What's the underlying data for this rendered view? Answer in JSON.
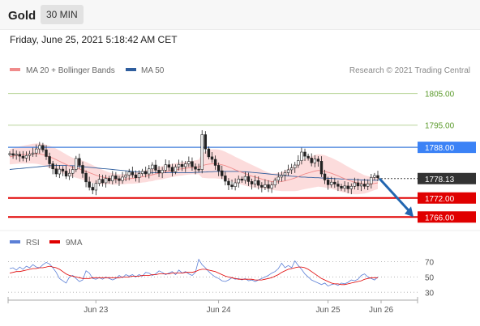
{
  "header": {
    "symbol": "Gold",
    "interval": "30 MIN",
    "timestamp": "Friday, June 25, 2021 5:18:42 AM CET"
  },
  "legend": {
    "ma20_label": "MA 20 + Bollinger Bands",
    "ma50_label": "MA 50",
    "credit": "Research © 2021 Trading Central"
  },
  "rsi_legend": {
    "rsi_label": "RSI",
    "ma_label": "9MA"
  },
  "colors": {
    "ma20": "#f08b8b",
    "bollinger_fill": "#fbd6d6",
    "ma50": "#2f5e9e",
    "resistance_label_bg": "#3b82f6",
    "support": "#e00000",
    "target_green": "#5a9a2a",
    "current_bg": "#333333",
    "arrow": "#2266b0",
    "candle": "#222222"
  },
  "chart_data": {
    "type": "candlestick",
    "ylim": [
      1763,
      1810
    ],
    "x_ticks": [
      "Jun 23",
      "Jun 24",
      "Jun 25",
      "Jun 26"
    ],
    "close_series": [
      1786.0,
      1785.5,
      1785.8,
      1785.2,
      1784.6,
      1785.4,
      1785.9,
      1786.2,
      1787.5,
      1788.6,
      1787.2,
      1785.1,
      1782.8,
      1781.2,
      1779.6,
      1781.1,
      1780.5,
      1778.9,
      1779.8,
      1781.0,
      1784.5,
      1782.3,
      1779.8,
      1777.1,
      1775.4,
      1774.5,
      1776.6,
      1777.9,
      1776.8,
      1778.2,
      1777.4,
      1779.0,
      1778.1,
      1777.5,
      1778.6,
      1779.2,
      1780.2,
      1779.3,
      1778.4,
      1779.7,
      1780.4,
      1779.6,
      1781.2,
      1782.4,
      1780.8,
      1779.9,
      1780.8,
      1782.5,
      1781.7,
      1780.3,
      1781.8,
      1782.6,
      1781.9,
      1782.8,
      1783.5,
      1781.9,
      1781.1,
      1781.0,
      1792.0,
      1787.5,
      1785.0,
      1784.2,
      1782.3,
      1780.6,
      1779.0,
      1777.3,
      1776.1,
      1775.6,
      1776.8,
      1778.0,
      1777.6,
      1778.8,
      1777.2,
      1776.4,
      1777.5,
      1776.0,
      1775.4,
      1776.2,
      1775.1,
      1776.1,
      1777.6,
      1778.6,
      1779.2,
      1780.0,
      1780.9,
      1781.5,
      1782.4,
      1783.8,
      1786.5,
      1785.2,
      1784.6,
      1783.1,
      1784.3,
      1783.6,
      1779.6,
      1777.7,
      1776.2,
      1777.0,
      1776.4,
      1775.7,
      1775.1,
      1775.8,
      1774.9,
      1775.7,
      1776.8,
      1775.8,
      1776.4,
      1775.7,
      1776.5,
      1778.5,
      1779.1,
      1778.4
    ],
    "ma20_series": [
      1785.0,
      1785.2,
      1785.4,
      1785.6,
      1785.7,
      1785.8,
      1785.9,
      1786.0,
      1786.0,
      1785.9,
      1785.7,
      1785.4,
      1785.0,
      1784.6,
      1784.1,
      1783.6,
      1783.1,
      1782.6,
      1782.1,
      1781.7,
      1781.4,
      1781.1,
      1780.8,
      1780.4,
      1780.0,
      1779.6,
      1779.2,
      1778.9,
      1778.6,
      1778.4,
      1778.2,
      1778.0,
      1777.9,
      1777.9,
      1777.9,
      1778.0,
      1778.1,
      1778.2,
      1778.3,
      1778.5,
      1778.7,
      1778.9,
      1779.1,
      1779.3,
      1779.6,
      1779.8,
      1780.0,
      1780.3,
      1780.5,
      1780.7,
      1780.9,
      1781.1,
      1781.2,
      1781.4,
      1781.5,
      1781.6,
      1781.7,
      1781.8,
      1782.2,
      1782.5,
      1782.7,
      1782.8,
      1782.8,
      1782.7,
      1782.5,
      1782.2,
      1781.8,
      1781.4,
      1780.9,
      1780.5,
      1780.1,
      1779.7,
      1779.3,
      1778.9,
      1778.6,
      1778.3,
      1778.0,
      1777.7,
      1777.4,
      1777.2,
      1777.1,
      1777.1,
      1777.2,
      1777.4,
      1777.7,
      1778.0,
      1778.3,
      1778.7,
      1779.2,
      1779.6,
      1779.9,
      1780.2,
      1780.5,
      1780.7,
      1780.6,
      1780.4,
      1780.1,
      1779.8,
      1779.4,
      1779.0,
      1778.5,
      1778.1,
      1777.7,
      1777.3,
      1777.0,
      1776.7,
      1776.5,
      1776.3,
      1776.3,
      1776.4,
      1776.6,
      1776.8
    ],
    "band_width_series": [
      2.4,
      2.5,
      2.6,
      2.7,
      2.8,
      2.9,
      3.0,
      3.1,
      3.2,
      3.3,
      3.4,
      3.4,
      3.5,
      3.5,
      3.5,
      3.4,
      3.3,
      3.2,
      3.1,
      3.0,
      3.0,
      3.0,
      3.0,
      3.0,
      2.9,
      2.8,
      2.7,
      2.5,
      2.3,
      2.1,
      1.9,
      1.8,
      1.7,
      1.6,
      1.6,
      1.6,
      1.6,
      1.7,
      1.7,
      1.8,
      1.8,
      1.9,
      1.9,
      2.0,
      2.0,
      2.0,
      2.1,
      2.1,
      2.1,
      2.1,
      2.1,
      2.1,
      2.1,
      2.1,
      2.1,
      2.1,
      2.2,
      2.3,
      3.8,
      4.2,
      4.5,
      4.6,
      4.6,
      4.6,
      4.5,
      4.4,
      4.3,
      4.2,
      4.1,
      4.0,
      3.9,
      3.8,
      3.7,
      3.6,
      3.4,
      3.2,
      3.0,
      2.8,
      2.6,
      2.6,
      2.7,
      2.8,
      3.0,
      3.2,
      3.5,
      3.8,
      4.1,
      4.4,
      4.6,
      4.8,
      4.9,
      5.0,
      5.1,
      5.1,
      5.1,
      5.1,
      5.0,
      4.9,
      4.8,
      4.7,
      4.6,
      4.4,
      4.2,
      4.0,
      3.8,
      3.5,
      3.2,
      2.9,
      2.6,
      2.3,
      2.1,
      2.0
    ],
    "ma50_series": [
      1781.0,
      1781.1,
      1781.2,
      1781.3,
      1781.4,
      1781.5,
      1781.6,
      1781.7,
      1781.8,
      1781.9,
      1782.0,
      1782.1,
      1782.2,
      1782.2,
      1782.3,
      1782.3,
      1782.3,
      1782.3,
      1782.2,
      1782.2,
      1782.1,
      1782.0,
      1781.9,
      1781.8,
      1781.7,
      1781.6,
      1781.5,
      1781.4,
      1781.3,
      1781.2,
      1781.1,
      1781.0,
      1780.9,
      1780.8,
      1780.7,
      1780.6,
      1780.5,
      1780.4,
      1780.3,
      1780.2,
      1780.2,
      1780.1,
      1780.1,
      1780.0,
      1780.0,
      1780.0,
      1780.0,
      1780.0,
      1780.0,
      1780.0,
      1780.0,
      1780.0,
      1780.0,
      1780.0,
      1780.0,
      1780.0,
      1780.1,
      1780.1,
      1780.2,
      1780.2,
      1780.3,
      1780.3,
      1780.4,
      1780.4,
      1780.4,
      1780.4,
      1780.4,
      1780.4,
      1780.4,
      1780.4,
      1780.3,
      1780.3,
      1780.2,
      1780.1,
      1780.0,
      1779.9,
      1779.8,
      1779.7,
      1779.6,
      1779.5,
      1779.4,
      1779.3,
      1779.2,
      1779.1,
      1779.0,
      1778.9,
      1778.8,
      1778.7,
      1778.6,
      1778.6,
      1778.5,
      1778.5,
      1778.4,
      1778.4,
      1778.3,
      1778.3,
      1778.2,
      1778.2,
      1778.1,
      1778.1,
      1778.0,
      1778.0,
      1777.9,
      1777.9,
      1777.8,
      1777.8,
      1777.7,
      1777.7,
      1777.6,
      1777.6,
      1777.6,
      1777.6
    ],
    "levels": [
      {
        "value": 1805.0,
        "label": "1805.00",
        "kind": "target"
      },
      {
        "value": 1795.0,
        "label": "1795.00",
        "kind": "target"
      },
      {
        "value": 1788.0,
        "label": "1788.00",
        "kind": "resistance"
      },
      {
        "value": 1778.13,
        "label": "1778.13",
        "kind": "current"
      },
      {
        "value": 1772.0,
        "label": "1772.00",
        "kind": "support"
      },
      {
        "value": 1766.0,
        "label": "1766.00",
        "kind": "support"
      }
    ],
    "forecast_arrow": {
      "from": 1778.13,
      "to": 1766.0
    },
    "rsi": {
      "ylim": [
        25,
        80
      ],
      "ticks": [
        70,
        50,
        30
      ],
      "rsi_series": [
        61.0,
        62.0,
        59.0,
        63.0,
        60.0,
        64.0,
        62.0,
        66.0,
        63.0,
        62.0,
        66.0,
        69.0,
        67.0,
        62.0,
        56.0,
        48.0,
        45.0,
        42.0,
        50.0,
        52.0,
        48.0,
        44.0,
        46.0,
        58.0,
        55.0,
        48.0,
        47.0,
        49.0,
        47.0,
        50.0,
        48.0,
        46.0,
        48.0,
        52.0,
        49.0,
        53.0,
        51.0,
        53.0,
        50.0,
        53.0,
        51.0,
        56.0,
        55.0,
        52.0,
        54.0,
        58.0,
        56.0,
        53.0,
        55.0,
        57.0,
        53.0,
        59.0,
        55.0,
        57.0,
        54.0,
        52.0,
        56.0,
        73.0,
        66.0,
        62.0,
        57.0,
        53.0,
        50.0,
        48.0,
        45.0,
        44.0,
        46.0,
        49.0,
        47.0,
        48.0,
        46.0,
        48.0,
        45.0,
        46.0,
        44.0,
        46.0,
        48.0,
        50.0,
        52.0,
        55.0,
        57.0,
        61.0,
        68.0,
        62.0,
        65.0,
        62.0,
        71.0,
        65.0,
        60.0,
        54.0,
        50.0,
        46.0,
        44.0,
        42.0,
        40.0,
        42.0,
        38.0,
        40.0,
        41.0,
        39.0,
        42.0,
        41.0,
        43.0,
        46.0,
        45.0,
        47.0,
        52.0,
        54.0,
        50.0,
        48.0,
        46.0,
        50.0
      ],
      "ma_series": [
        55.0,
        56.0,
        57.0,
        57.0,
        58.0,
        59.0,
        60.0,
        61.0,
        61.0,
        62.0,
        62.0,
        63.0,
        64.0,
        63.0,
        62.0,
        60.0,
        57.0,
        54.0,
        52.0,
        51.0,
        50.0,
        49.0,
        48.0,
        48.0,
        48.0,
        49.0,
        49.0,
        49.0,
        49.0,
        49.0,
        49.0,
        49.0,
        49.0,
        49.0,
        50.0,
        50.0,
        50.0,
        51.0,
        51.0,
        51.0,
        52.0,
        52.0,
        52.0,
        53.0,
        53.0,
        54.0,
        54.0,
        54.0,
        54.0,
        55.0,
        55.0,
        55.0,
        55.0,
        56.0,
        56.0,
        56.0,
        57.0,
        59.0,
        60.0,
        60.0,
        59.0,
        58.0,
        57.0,
        55.0,
        53.0,
        51.0,
        50.0,
        49.0,
        48.0,
        47.0,
        47.0,
        47.0,
        47.0,
        47.0,
        46.0,
        46.0,
        46.0,
        47.0,
        48.0,
        49.0,
        51.0,
        53.0,
        56.0,
        58.0,
        60.0,
        61.0,
        62.0,
        63.0,
        63.0,
        62.0,
        60.0,
        57.0,
        54.0,
        51.0,
        48.0,
        46.0,
        44.0,
        42.0,
        41.0,
        41.0,
        40.0,
        40.0,
        41.0,
        42.0,
        43.0,
        44.0,
        45.0,
        47.0,
        48.0,
        49.0,
        49.0,
        49.0
      ]
    }
  }
}
